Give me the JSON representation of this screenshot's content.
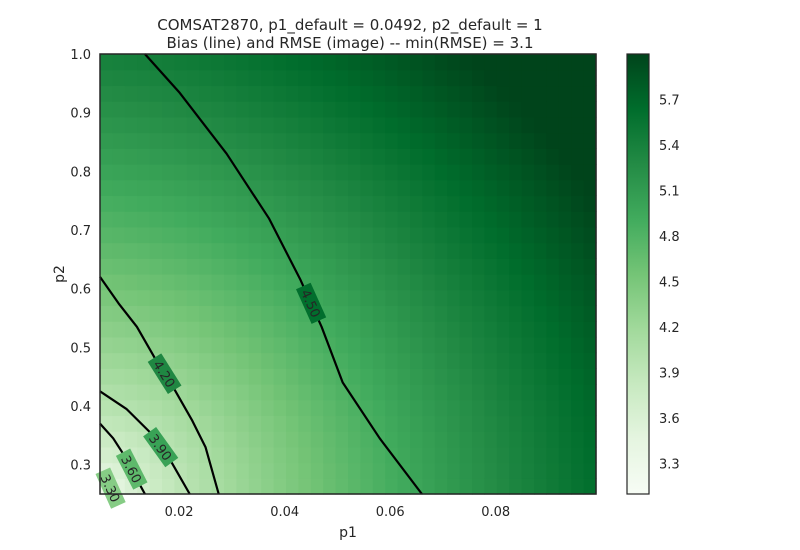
{
  "chart_data": {
    "type": "heatmap",
    "title": "COMSAT2870, p1_default = 0.0492, p2_default = 1",
    "subtitle": "Bias (line) and RMSE (image) -- min(RMSE) = 3.1",
    "xlabel": "p1",
    "ylabel": "p2",
    "xlim": [
      0.005,
      0.099
    ],
    "ylim": [
      0.25,
      1.0
    ],
    "x_ticks": [
      0.02,
      0.04,
      0.06,
      0.08
    ],
    "x_tick_labels": [
      "0.02",
      "0.04",
      "0.06",
      "0.08"
    ],
    "y_ticks": [
      0.3,
      0.4,
      0.5,
      0.6,
      0.7,
      0.8,
      0.9,
      1.0
    ],
    "y_tick_labels": [
      "0.3",
      "0.4",
      "0.5",
      "0.6",
      "0.7",
      "0.8",
      "0.9",
      "1.0"
    ],
    "colormap": "Greens",
    "colorbar": {
      "range": [
        3.1,
        6.0
      ],
      "ticks": [
        3.3,
        3.6,
        3.9,
        4.2,
        4.5,
        4.8,
        5.1,
        5.4,
        5.7
      ],
      "tick_labels": [
        "3.3",
        "3.6",
        "3.9",
        "4.2",
        "4.5",
        "4.8",
        "5.1",
        "5.4",
        "5.7"
      ]
    },
    "grid": false,
    "contours": [
      {
        "level": 3.3,
        "label": "3.30",
        "points": [
          [
            0.005,
            0.285
          ],
          [
            0.0065,
            0.27
          ],
          [
            0.0075,
            0.25
          ]
        ]
      },
      {
        "level": 3.6,
        "label": "3.60",
        "points": [
          [
            0.005,
            0.37
          ],
          [
            0.0075,
            0.345
          ],
          [
            0.01,
            0.31
          ],
          [
            0.012,
            0.275
          ],
          [
            0.0135,
            0.25
          ]
        ]
      },
      {
        "level": 3.9,
        "label": "3.90",
        "points": [
          [
            0.005,
            0.425
          ],
          [
            0.01,
            0.395
          ],
          [
            0.0145,
            0.355
          ],
          [
            0.0185,
            0.305
          ],
          [
            0.022,
            0.25
          ]
        ]
      },
      {
        "level": 4.2,
        "label": "4.20",
        "points": [
          [
            0.005,
            0.62
          ],
          [
            0.0085,
            0.575
          ],
          [
            0.012,
            0.535
          ],
          [
            0.0155,
            0.48
          ],
          [
            0.019,
            0.43
          ],
          [
            0.0225,
            0.375
          ],
          [
            0.025,
            0.33
          ],
          [
            0.0275,
            0.25
          ]
        ]
      },
      {
        "level": 4.5,
        "label": "4.50",
        "points": [
          [
            0.0135,
            1.0
          ],
          [
            0.02,
            0.935
          ],
          [
            0.029,
            0.83
          ],
          [
            0.037,
            0.72
          ],
          [
            0.043,
            0.615
          ],
          [
            0.047,
            0.535
          ],
          [
            0.051,
            0.44
          ],
          [
            0.058,
            0.345
          ],
          [
            0.066,
            0.25
          ]
        ]
      }
    ]
  }
}
